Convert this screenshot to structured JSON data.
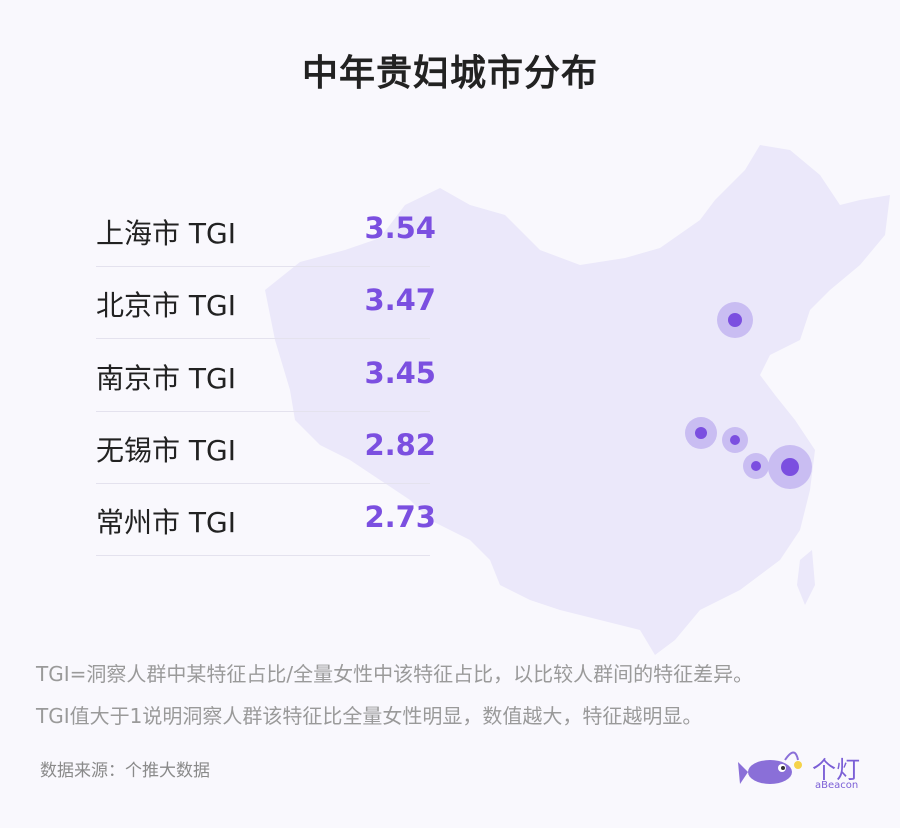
{
  "title": "中年贵妇城市分布",
  "rows": [
    {
      "label": "上海市 TGI",
      "value": 3.54
    },
    {
      "label": "北京市 TGI",
      "value": 3.47
    },
    {
      "label": "南京市 TGI",
      "value": 3.45
    },
    {
      "label": "无锡市 TGI",
      "value": 2.82
    },
    {
      "label": "常州市 TGI",
      "value": 2.73
    }
  ],
  "notes": [
    "TGI=洞察人群中某特征占比/全量女性中该特征占比，以比较人群间的特征差异。",
    "TGI值大于1说明洞察人群该特征比全量女性明显，数值越大，特征越明显。"
  ],
  "source": "数据来源：个推大数据",
  "logo": {
    "name": "个灯",
    "sub": "aBeacon"
  }
}
